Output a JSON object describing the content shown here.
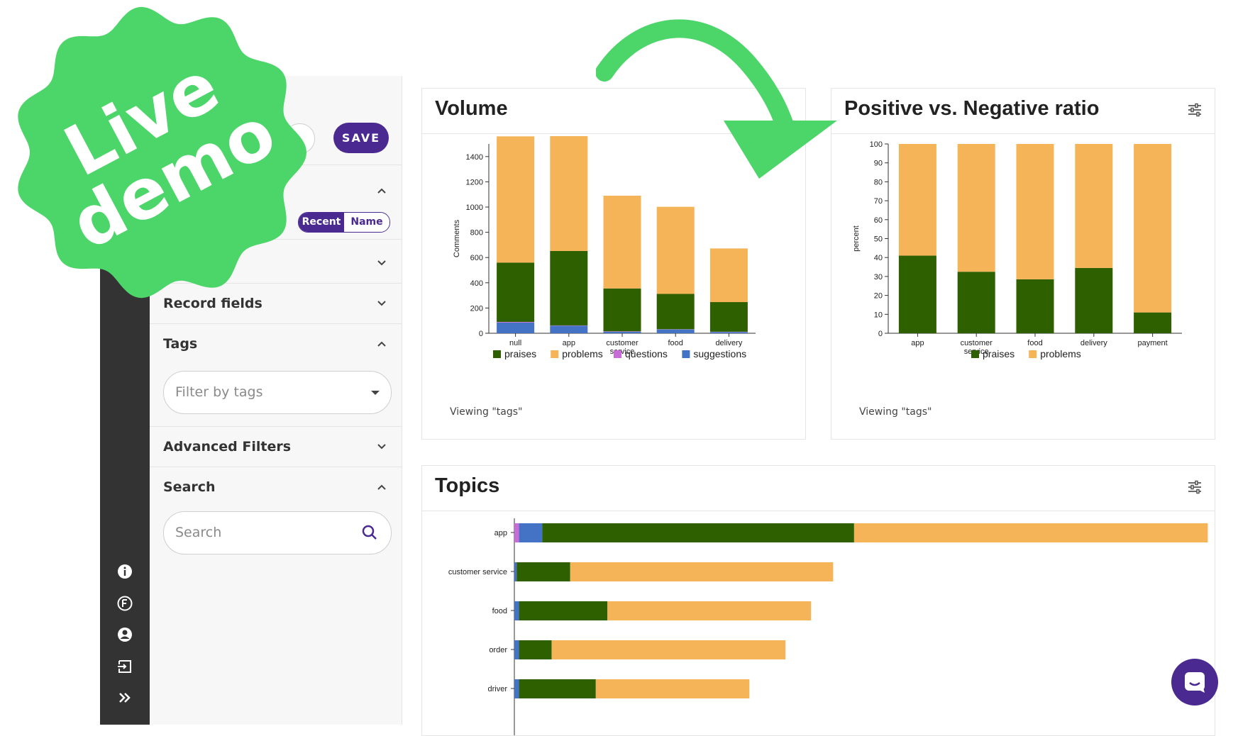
{
  "sidebar": {
    "save_label": "SAVE",
    "sort_toggle": {
      "recent": "Recent",
      "name": "Name"
    },
    "sections": {
      "record_fields": "Record fields",
      "tags": "Tags",
      "advanced_filters": "Advanced Filters",
      "search": "Search"
    },
    "tags_placeholder": "Filter by tags",
    "search_placeholder": "Search"
  },
  "rail_icons": [
    "info-icon",
    "f-circle-icon",
    "user-icon",
    "logout-icon",
    "double-chevron-icon"
  ],
  "badge": {
    "line1": "Live",
    "line2": "demo",
    "color": "#4cd568"
  },
  "colors": {
    "praises": "#2e6000",
    "problems": "#f6b458",
    "questions": "#c86dd7",
    "suggestions": "#4472c4",
    "accent": "#4a2a91"
  },
  "volume_card": {
    "title": "Volume",
    "viewing": "Viewing \"tags\""
  },
  "ratio_card": {
    "title": "Positive vs. Negative ratio",
    "viewing": "Viewing \"tags\""
  },
  "topics_card": {
    "title": "Topics"
  },
  "chart_data": [
    {
      "type": "bar",
      "stacked": true,
      "title": "Volume",
      "ylabel": "Comments",
      "ylim": [
        0,
        1500
      ],
      "yticks": [
        0,
        200,
        400,
        600,
        800,
        1000,
        1200,
        1400
      ],
      "categories": [
        "null",
        "app",
        "customer service",
        "food",
        "delivery"
      ],
      "series": [
        {
          "name": "praises",
          "values": [
            470,
            590,
            340,
            280,
            235
          ]
        },
        {
          "name": "problems",
          "values": [
            1000,
            910,
            735,
            690,
            425
          ]
        },
        {
          "name": "questions",
          "values": [
            5,
            2,
            3,
            2,
            2
          ]
        },
        {
          "name": "suggestions",
          "values": [
            85,
            60,
            12,
            30,
            10
          ]
        }
      ],
      "legend": "bottom"
    },
    {
      "type": "bar",
      "stacked": true,
      "title": "Positive vs. Negative ratio",
      "ylabel": "percent",
      "ylim": [
        0,
        100
      ],
      "yticks": [
        0,
        10,
        20,
        30,
        40,
        50,
        60,
        70,
        80,
        90,
        100
      ],
      "categories": [
        "app",
        "customer service",
        "food",
        "delivery",
        "payment"
      ],
      "series": [
        {
          "name": "praises",
          "values": [
            41,
            32.5,
            28.5,
            34.5,
            11
          ]
        },
        {
          "name": "problems",
          "values": [
            59,
            67.5,
            71.5,
            65.5,
            89
          ]
        }
      ],
      "legend": "bottom"
    },
    {
      "type": "bar",
      "orientation": "horizontal",
      "stacked": true,
      "title": "Topics",
      "categories": [
        "app",
        "customer service",
        "food",
        "order",
        "driver"
      ],
      "series": [
        {
          "name": "questions",
          "values": [
            4,
            0,
            0,
            0,
            0
          ]
        },
        {
          "name": "suggestions",
          "values": [
            20,
            2,
            4,
            4,
            4
          ]
        },
        {
          "name": "praises",
          "values": [
            268,
            46,
            76,
            28,
            66
          ]
        },
        {
          "name": "problems",
          "values": [
            304,
            226,
            175,
            201,
            132
          ]
        }
      ]
    }
  ]
}
